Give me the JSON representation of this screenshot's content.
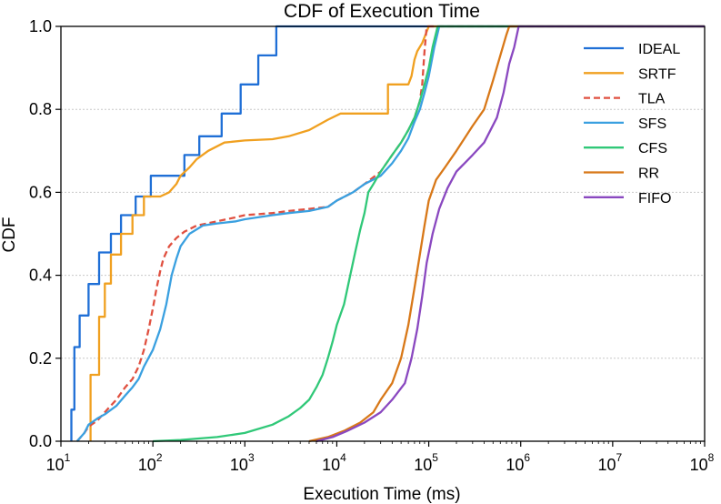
{
  "chart_data": {
    "type": "line",
    "title": "CDF of Execution Time",
    "xlabel": "Execution Time (ms)",
    "ylabel": "CDF",
    "x_scale": "log",
    "xlim": [
      10,
      100000000
    ],
    "ylim": [
      0,
      1
    ],
    "x_ticks": [
      {
        "value": 10,
        "base": "10",
        "exp": "1"
      },
      {
        "value": 100,
        "base": "10",
        "exp": "2"
      },
      {
        "value": 1000,
        "base": "10",
        "exp": "3"
      },
      {
        "value": 10000,
        "base": "10",
        "exp": "4"
      },
      {
        "value": 100000,
        "base": "10",
        "exp": "5"
      },
      {
        "value": 1000000,
        "base": "10",
        "exp": "6"
      },
      {
        "value": 10000000,
        "base": "10",
        "exp": "7"
      },
      {
        "value": 100000000,
        "base": "10",
        "exp": "8"
      }
    ],
    "y_ticks": [
      "0.0",
      "0.2",
      "0.4",
      "0.6",
      "0.8",
      "1.0"
    ],
    "y_tick_values": [
      0,
      0.2,
      0.4,
      0.6,
      0.8,
      1.0
    ],
    "grid": "horizontal dotted",
    "legend_position": "top-right",
    "series": [
      {
        "name": "IDEAL",
        "color": "#1f6fd6",
        "dash": "solid",
        "points": [
          [
            13,
            0
          ],
          [
            13,
            0.076
          ],
          [
            14,
            0.076
          ],
          [
            14,
            0.227
          ],
          [
            16,
            0.227
          ],
          [
            16,
            0.303
          ],
          [
            20,
            0.303
          ],
          [
            20,
            0.379
          ],
          [
            26,
            0.379
          ],
          [
            26,
            0.455
          ],
          [
            35,
            0.455
          ],
          [
            35,
            0.5
          ],
          [
            45,
            0.5
          ],
          [
            45,
            0.545
          ],
          [
            65,
            0.545
          ],
          [
            65,
            0.59
          ],
          [
            95,
            0.59
          ],
          [
            95,
            0.64
          ],
          [
            140,
            0.64
          ],
          [
            140,
            0.64
          ],
          [
            220,
            0.64
          ],
          [
            220,
            0.69
          ],
          [
            320,
            0.69
          ],
          [
            320,
            0.735
          ],
          [
            560,
            0.735
          ],
          [
            560,
            0.79
          ],
          [
            900,
            0.79
          ],
          [
            900,
            0.86
          ],
          [
            1400,
            0.86
          ],
          [
            1400,
            0.93
          ],
          [
            2200,
            0.93
          ],
          [
            2200,
            1.0
          ],
          [
            100000000,
            1.0
          ]
        ]
      },
      {
        "name": "SRTF",
        "color": "#f0a020",
        "dash": "solid",
        "points": [
          [
            21,
            0
          ],
          [
            21,
            0.16
          ],
          [
            26,
            0.16
          ],
          [
            26,
            0.3
          ],
          [
            30,
            0.3
          ],
          [
            30,
            0.38
          ],
          [
            35,
            0.38
          ],
          [
            35,
            0.45
          ],
          [
            45,
            0.45
          ],
          [
            45,
            0.5
          ],
          [
            60,
            0.5
          ],
          [
            60,
            0.545
          ],
          [
            80,
            0.545
          ],
          [
            80,
            0.59
          ],
          [
            120,
            0.59
          ],
          [
            150,
            0.6
          ],
          [
            180,
            0.62
          ],
          [
            200,
            0.64
          ],
          [
            250,
            0.66
          ],
          [
            300,
            0.68
          ],
          [
            400,
            0.7
          ],
          [
            600,
            0.72
          ],
          [
            1000,
            0.725
          ],
          [
            2000,
            0.728
          ],
          [
            3000,
            0.735
          ],
          [
            5000,
            0.75
          ],
          [
            8000,
            0.775
          ],
          [
            11000,
            0.79
          ],
          [
            20000,
            0.79
          ],
          [
            36000,
            0.79
          ],
          [
            36000,
            0.86
          ],
          [
            60000,
            0.86
          ],
          [
            65000,
            0.88
          ],
          [
            70000,
            0.92
          ],
          [
            75000,
            0.94
          ],
          [
            85000,
            0.96
          ],
          [
            100000,
            1.0
          ],
          [
            100000000,
            1.0
          ]
        ]
      },
      {
        "name": "TLA",
        "color": "#e05040",
        "dash": "dashed",
        "points": [
          [
            15,
            0
          ],
          [
            18,
            0.02
          ],
          [
            20,
            0.035
          ],
          [
            25,
            0.05
          ],
          [
            30,
            0.07
          ],
          [
            40,
            0.1
          ],
          [
            50,
            0.13
          ],
          [
            60,
            0.15
          ],
          [
            70,
            0.18
          ],
          [
            80,
            0.22
          ],
          [
            90,
            0.27
          ],
          [
            100,
            0.32
          ],
          [
            110,
            0.37
          ],
          [
            120,
            0.41
          ],
          [
            130,
            0.44
          ],
          [
            150,
            0.47
          ],
          [
            180,
            0.49
          ],
          [
            220,
            0.505
          ],
          [
            300,
            0.52
          ],
          [
            500,
            0.53
          ],
          [
            800,
            0.54
          ],
          [
            1000,
            0.545
          ],
          [
            2000,
            0.55
          ],
          [
            3000,
            0.555
          ],
          [
            5000,
            0.56
          ],
          [
            8000,
            0.565
          ],
          [
            10000,
            0.58
          ],
          [
            15000,
            0.6
          ],
          [
            20000,
            0.62
          ],
          [
            30000,
            0.65
          ],
          [
            40000,
            0.69
          ],
          [
            50000,
            0.72
          ],
          [
            60000,
            0.75
          ],
          [
            70000,
            0.78
          ],
          [
            80000,
            0.82
          ],
          [
            85000,
            0.86
          ],
          [
            90000,
            0.94
          ],
          [
            95000,
            1.0
          ],
          [
            100000000,
            1.0
          ]
        ]
      },
      {
        "name": "SFS",
        "color": "#3aa0e0",
        "dash": "solid",
        "points": [
          [
            15,
            0
          ],
          [
            18,
            0.02
          ],
          [
            20,
            0.04
          ],
          [
            25,
            0.055
          ],
          [
            30,
            0.065
          ],
          [
            40,
            0.085
          ],
          [
            50,
            0.11
          ],
          [
            60,
            0.13
          ],
          [
            70,
            0.15
          ],
          [
            80,
            0.18
          ],
          [
            100,
            0.22
          ],
          [
            120,
            0.27
          ],
          [
            140,
            0.33
          ],
          [
            160,
            0.4
          ],
          [
            180,
            0.44
          ],
          [
            200,
            0.47
          ],
          [
            250,
            0.5
          ],
          [
            350,
            0.52
          ],
          [
            500,
            0.525
          ],
          [
            800,
            0.53
          ],
          [
            1000,
            0.535
          ],
          [
            2000,
            0.545
          ],
          [
            3000,
            0.55
          ],
          [
            5000,
            0.555
          ],
          [
            8000,
            0.565
          ],
          [
            10000,
            0.58
          ],
          [
            15000,
            0.6
          ],
          [
            20000,
            0.62
          ],
          [
            30000,
            0.64
          ],
          [
            40000,
            0.67
          ],
          [
            50000,
            0.7
          ],
          [
            60000,
            0.73
          ],
          [
            70000,
            0.77
          ],
          [
            80000,
            0.8
          ],
          [
            90000,
            0.84
          ],
          [
            100000,
            0.88
          ],
          [
            115000,
            0.95
          ],
          [
            130000,
            1.0
          ],
          [
            100000000,
            1.0
          ]
        ]
      },
      {
        "name": "CFS",
        "color": "#30c878",
        "dash": "solid",
        "points": [
          [
            100,
            0
          ],
          [
            200,
            0.003
          ],
          [
            500,
            0.01
          ],
          [
            1000,
            0.02
          ],
          [
            2000,
            0.04
          ],
          [
            3000,
            0.06
          ],
          [
            4000,
            0.08
          ],
          [
            5000,
            0.1
          ],
          [
            6000,
            0.13
          ],
          [
            7000,
            0.16
          ],
          [
            8000,
            0.2
          ],
          [
            9000,
            0.24
          ],
          [
            10000,
            0.28
          ],
          [
            12000,
            0.33
          ],
          [
            14000,
            0.4
          ],
          [
            16000,
            0.46
          ],
          [
            18000,
            0.51
          ],
          [
            20000,
            0.55
          ],
          [
            22000,
            0.6
          ],
          [
            25000,
            0.62
          ],
          [
            30000,
            0.65
          ],
          [
            40000,
            0.69
          ],
          [
            50000,
            0.72
          ],
          [
            60000,
            0.75
          ],
          [
            70000,
            0.78
          ],
          [
            80000,
            0.82
          ],
          [
            90000,
            0.86
          ],
          [
            100000,
            0.9
          ],
          [
            110000,
            0.95
          ],
          [
            125000,
            1.0
          ],
          [
            100000000,
            1.0
          ]
        ]
      },
      {
        "name": "RR",
        "color": "#d87818",
        "dash": "solid",
        "points": [
          [
            5000,
            0
          ],
          [
            8000,
            0.01
          ],
          [
            12000,
            0.025
          ],
          [
            18000,
            0.045
          ],
          [
            25000,
            0.07
          ],
          [
            30000,
            0.1
          ],
          [
            40000,
            0.14
          ],
          [
            50000,
            0.2
          ],
          [
            60000,
            0.28
          ],
          [
            70000,
            0.37
          ],
          [
            80000,
            0.45
          ],
          [
            90000,
            0.52
          ],
          [
            100000,
            0.58
          ],
          [
            120000,
            0.63
          ],
          [
            150000,
            0.66
          ],
          [
            200000,
            0.7
          ],
          [
            300000,
            0.76
          ],
          [
            400000,
            0.8
          ],
          [
            500000,
            0.87
          ],
          [
            600000,
            0.93
          ],
          [
            700000,
            0.98
          ],
          [
            750000,
            1.0
          ],
          [
            100000000,
            1.0
          ]
        ]
      },
      {
        "name": "FIFO",
        "color": "#8a48c0",
        "dash": "solid",
        "points": [
          [
            6000,
            0
          ],
          [
            9000,
            0.01
          ],
          [
            13000,
            0.025
          ],
          [
            20000,
            0.045
          ],
          [
            30000,
            0.07
          ],
          [
            40000,
            0.1
          ],
          [
            55000,
            0.14
          ],
          [
            65000,
            0.2
          ],
          [
            75000,
            0.27
          ],
          [
            85000,
            0.35
          ],
          [
            95000,
            0.43
          ],
          [
            110000,
            0.5
          ],
          [
            130000,
            0.56
          ],
          [
            160000,
            0.61
          ],
          [
            200000,
            0.65
          ],
          [
            300000,
            0.69
          ],
          [
            400000,
            0.72
          ],
          [
            550000,
            0.78
          ],
          [
            650000,
            0.84
          ],
          [
            750000,
            0.91
          ],
          [
            850000,
            0.95
          ],
          [
            950000,
            1.0
          ],
          [
            100000000,
            1.0
          ]
        ]
      }
    ]
  }
}
